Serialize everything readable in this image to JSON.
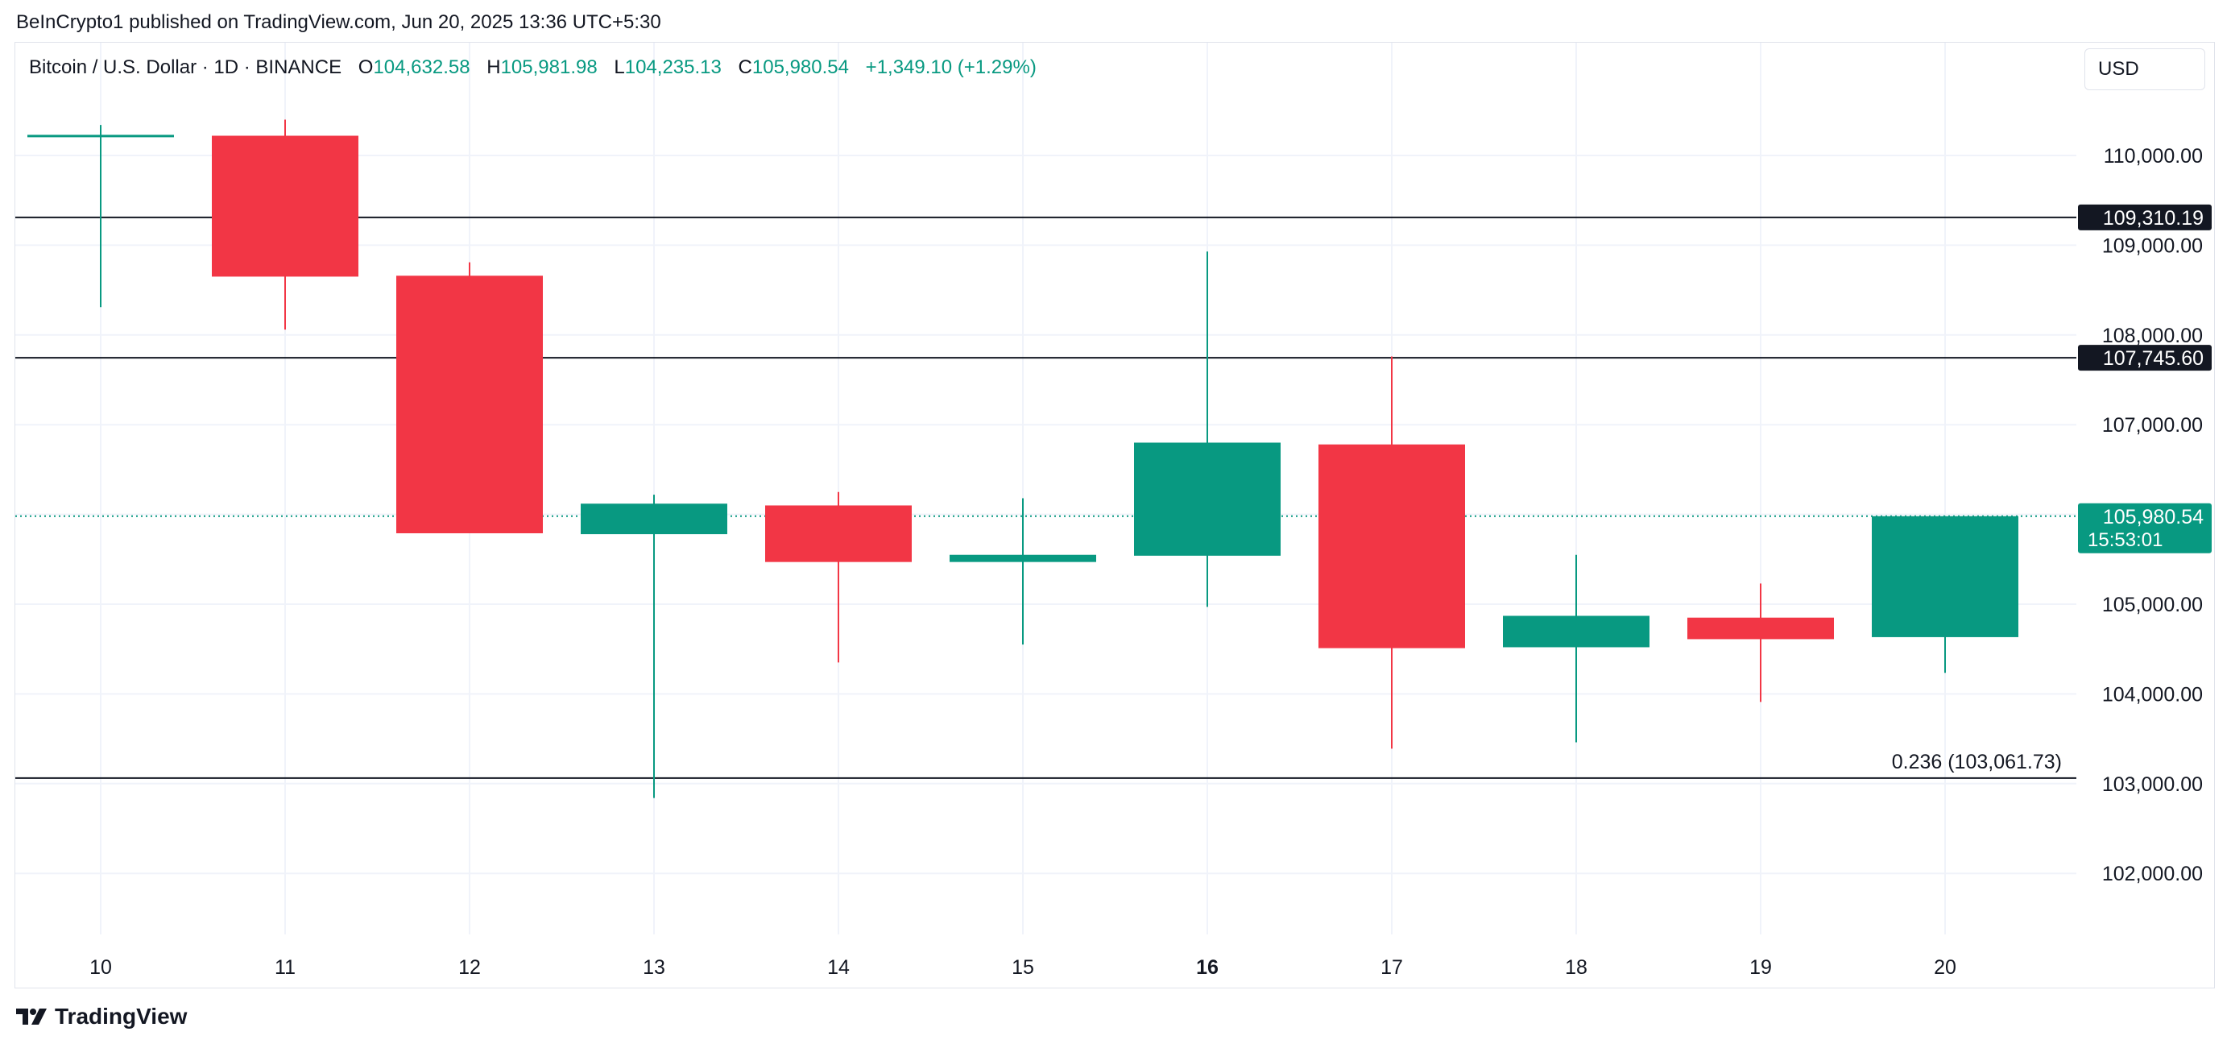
{
  "header": {
    "published_text": "BeInCrypto1 published on TradingView.com, Jun 20, 2025 13:36 UTC+5:30"
  },
  "legend": {
    "symbol": "Bitcoin / U.S. Dollar · 1D · BINANCE",
    "open_label": "O",
    "open": "104,632.58",
    "high_label": "H",
    "high": "105,981.98",
    "low_label": "L",
    "low": "104,235.13",
    "close_label": "C",
    "close": "105,980.54",
    "change": "+1,349.10 (+1.29%)"
  },
  "currency_button": {
    "label": "USD"
  },
  "brand": {
    "name": "TradingView",
    "icon": "tradingview-logo-icon"
  },
  "colors": {
    "up": "#089981",
    "down": "#f23645",
    "grid": "#f0f3fa",
    "level_line": "#131722",
    "axis_text": "#131722"
  },
  "chart_data": {
    "type": "candlestick",
    "categories": [
      "10",
      "11",
      "12",
      "13",
      "14",
      "15",
      "16",
      "17",
      "18",
      "19",
      "20"
    ],
    "bold_categories": [
      "16"
    ],
    "series": [
      {
        "values": [
          {
            "x": "10",
            "open": 110220,
            "high": 110340,
            "low": 108310,
            "close": 110230
          },
          {
            "x": "11",
            "open": 110220,
            "high": 110400,
            "low": 108060,
            "close": 108650
          },
          {
            "x": "12",
            "open": 108660,
            "high": 108810,
            "low": 105790,
            "close": 105790
          },
          {
            "x": "13",
            "open": 105780,
            "high": 106220,
            "low": 102840,
            "close": 106120
          },
          {
            "x": "14",
            "open": 106100,
            "high": 106250,
            "low": 104350,
            "close": 105470
          },
          {
            "x": "15",
            "open": 105470,
            "high": 106180,
            "low": 104550,
            "close": 105550
          },
          {
            "x": "16",
            "open": 105540,
            "high": 108930,
            "low": 104970,
            "close": 106800
          },
          {
            "x": "17",
            "open": 106780,
            "high": 107760,
            "low": 103390,
            "close": 104510
          },
          {
            "x": "18",
            "open": 104520,
            "high": 105550,
            "low": 103460,
            "close": 104870
          },
          {
            "x": "19",
            "open": 104850,
            "high": 105230,
            "low": 103910,
            "close": 104610
          },
          {
            "x": "20",
            "open": 104632.58,
            "high": 105981.98,
            "low": 104235.13,
            "close": 105980.54
          }
        ]
      }
    ],
    "y_ticks": [
      "110,000.00",
      "109,000.00",
      "108,000.00",
      "107,000.00",
      "105,000.00",
      "104,000.00",
      "103,000.00",
      "102,000.00"
    ],
    "y_tick_values": [
      110000,
      109000,
      108000,
      107000,
      105000,
      104000,
      103000,
      102000
    ],
    "ylim": [
      101000,
      110850
    ],
    "levels": [
      {
        "value": 109310.19,
        "label": "109,310.19"
      },
      {
        "value": 107745.6,
        "label": "107,745.60"
      },
      {
        "value": 103061.73,
        "annotation": "0.236 (103,061.73)"
      }
    ],
    "last_price": {
      "value": 105980.54,
      "label": "105,980.54",
      "countdown": "15:53:01"
    },
    "grid": true
  }
}
